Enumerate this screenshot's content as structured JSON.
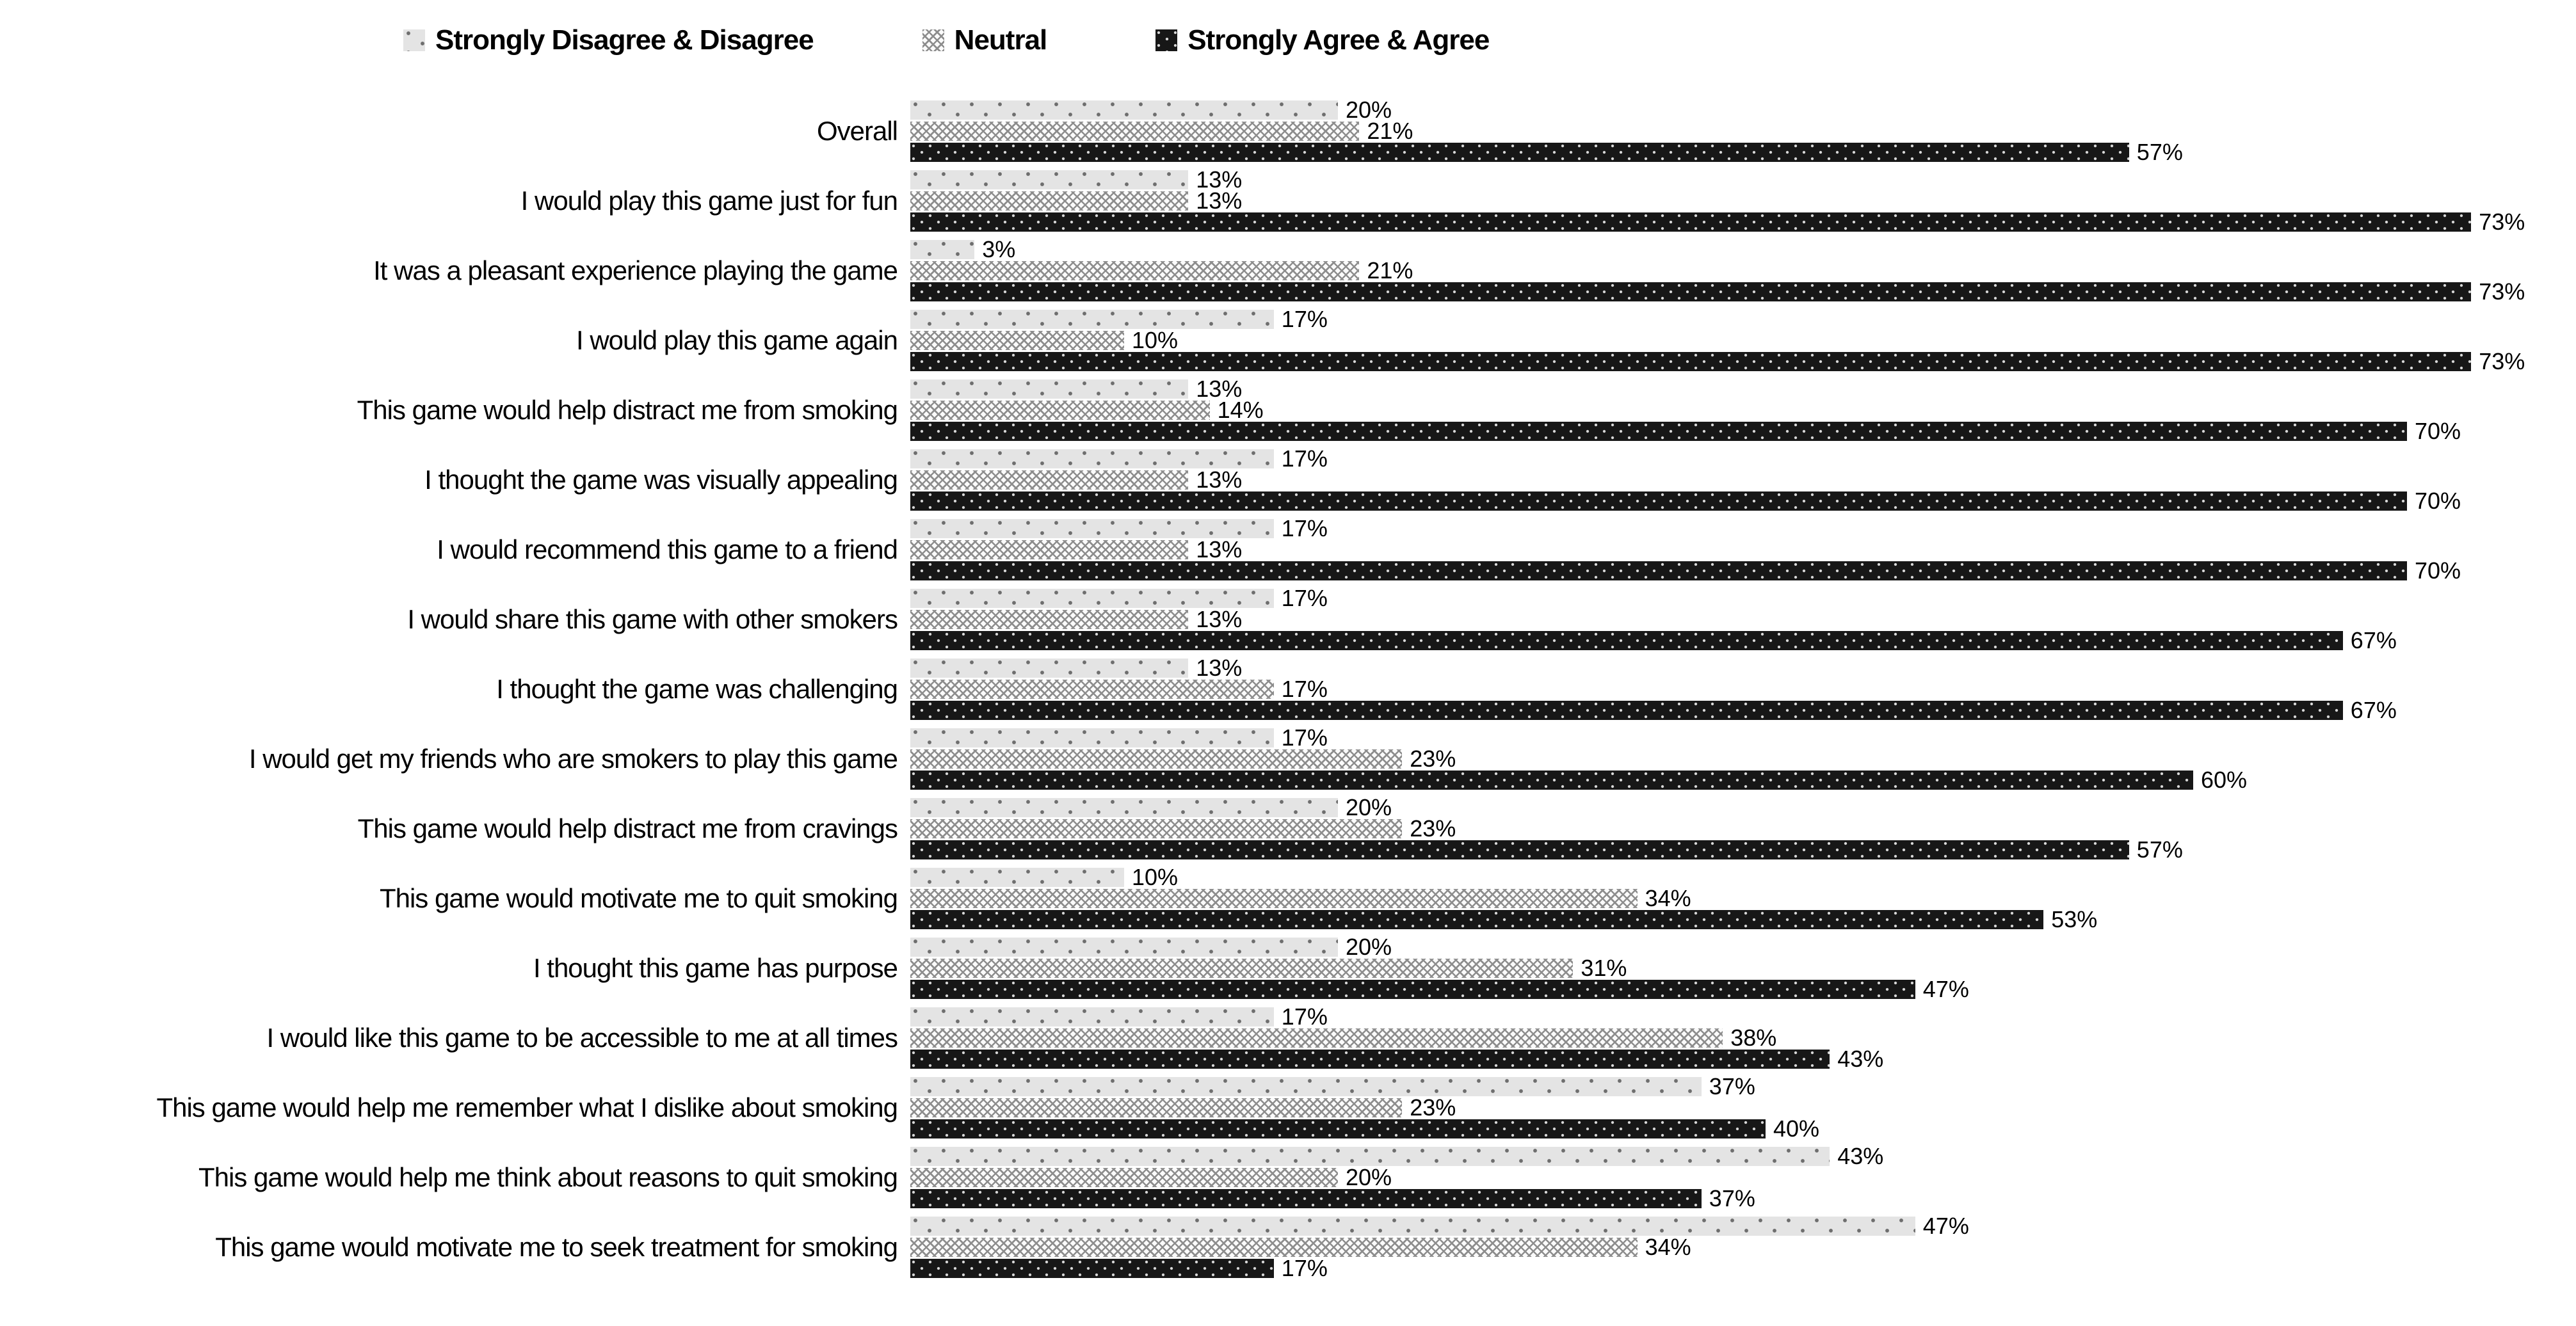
{
  "colors": {
    "disagree_fill": "#e4e4e4",
    "disagree_dot": "#6e6e6e",
    "neutral_hatch": "#8d8d8d",
    "agree_fill": "#171717",
    "agree_dot": "#d6d6d6",
    "text": "#000000",
    "background": "#ffffff"
  },
  "legend": {
    "position": "top",
    "items": [
      {
        "label": "Strongly Disagree & Disagree",
        "pattern": "light-gray-dotted"
      },
      {
        "label": "Neutral",
        "pattern": "gray-diamond-crosshatch"
      },
      {
        "label": "Strongly Agree & Agree",
        "pattern": "black-white-dotted"
      }
    ]
  },
  "chart_data": {
    "type": "bar",
    "orientation": "horizontal",
    "title": "",
    "xlabel": "",
    "ylabel": "",
    "grid": false,
    "axis_ticks_visible": false,
    "value_suffix": "%",
    "xlim": [
      0,
      77
    ],
    "legend_position": "top",
    "categories": [
      "Overall",
      "I would play this game just for fun",
      "It was a pleasant experience playing the game",
      "I would play this game again",
      "This game would help distract me from smoking",
      "I thought the game was visually appealing",
      "I would recommend this game to a friend",
      "I would share this game with other smokers",
      "I thought the game was challenging",
      "I would get my friends who are smokers to play this game",
      "This game would help distract me from cravings",
      "This game would motivate me to quit smoking",
      "I thought this game has purpose",
      "I would like this game to be accessible to me at all times",
      "This game would help me remember what I dislike about smoking",
      "This game would help me think about reasons to quit smoking",
      "This game would motivate me to seek treatment for smoking"
    ],
    "series": [
      {
        "name": "Strongly Disagree & Disagree",
        "pattern": "light-gray-dotted",
        "values": [
          20,
          13,
          3,
          17,
          13,
          17,
          17,
          17,
          13,
          17,
          20,
          10,
          20,
          17,
          37,
          43,
          47
        ]
      },
      {
        "name": "Neutral",
        "pattern": "gray-diamond-crosshatch",
        "values": [
          21,
          13,
          21,
          10,
          14,
          13,
          13,
          13,
          17,
          23,
          23,
          34,
          31,
          38,
          23,
          20,
          34
        ]
      },
      {
        "name": "Strongly Agree & Agree",
        "pattern": "black-white-dotted",
        "values": [
          57,
          73,
          73,
          73,
          70,
          70,
          70,
          67,
          67,
          60,
          57,
          53,
          47,
          43,
          40,
          37,
          17
        ]
      }
    ]
  }
}
